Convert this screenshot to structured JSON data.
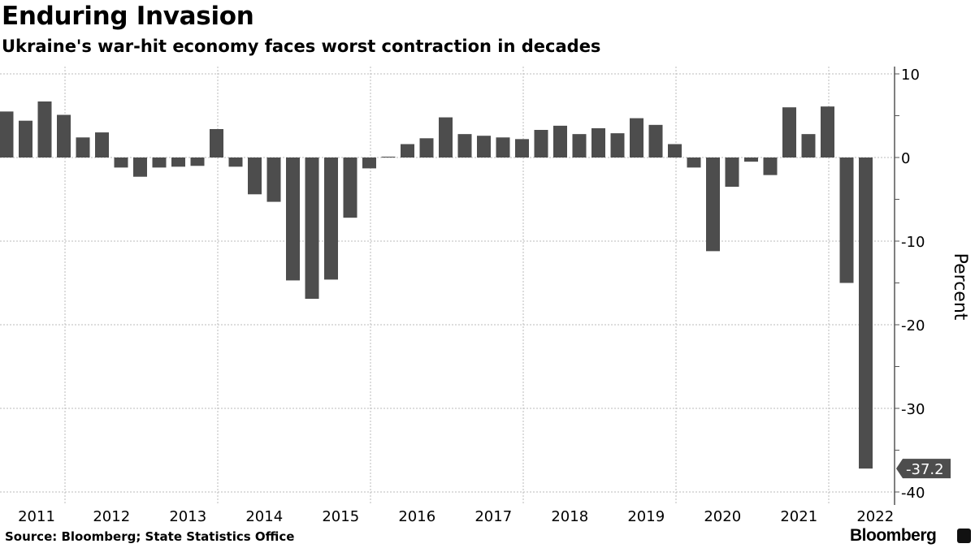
{
  "chart_data": {
    "type": "bar",
    "title": "Enduring Invasion",
    "subtitle": "Ukraine's war-hit economy faces worst contraction in decades",
    "ylabel": "Percent",
    "xlabel": "",
    "ylim": [
      -40,
      10
    ],
    "yticks": [
      10,
      0,
      -10,
      -20,
      -30,
      -40
    ],
    "grid": true,
    "bar_color": "#4d4d4d",
    "year_labels": [
      "2011",
      "2012",
      "2013",
      "2014",
      "2015",
      "2016",
      "2017",
      "2018",
      "2019",
      "2020",
      "2021",
      "2022"
    ],
    "categories": [
      "2011 Q1",
      "2011 Q2",
      "2011 Q3",
      "2011 Q4",
      "2012 Q1",
      "2012 Q2",
      "2012 Q3",
      "2012 Q4",
      "2013 Q1",
      "2013 Q2",
      "2013 Q3",
      "2013 Q4",
      "2014 Q1",
      "2014 Q2",
      "2014 Q3",
      "2014 Q4",
      "2015 Q1",
      "2015 Q2",
      "2015 Q3",
      "2015 Q4",
      "2016 Q1",
      "2016 Q2",
      "2016 Q3",
      "2016 Q4",
      "2017 Q1",
      "2017 Q2",
      "2017 Q3",
      "2017 Q4",
      "2018 Q1",
      "2018 Q2",
      "2018 Q3",
      "2018 Q4",
      "2019 Q1",
      "2019 Q2",
      "2019 Q3",
      "2019 Q4",
      "2020 Q1",
      "2020 Q2",
      "2020 Q3",
      "2020 Q4",
      "2021 Q1",
      "2021 Q2",
      "2021 Q3",
      "2021 Q4",
      "2022 Q1",
      "2022 Q2"
    ],
    "values": [
      5.5,
      4.4,
      6.7,
      5.1,
      2.4,
      3.0,
      -1.2,
      -2.3,
      -1.2,
      -1.1,
      -1.0,
      3.4,
      -1.1,
      -4.4,
      -5.3,
      -14.7,
      -16.9,
      -14.6,
      -7.2,
      -1.3,
      0.1,
      1.6,
      2.3,
      4.8,
      2.8,
      2.6,
      2.4,
      2.2,
      3.3,
      3.8,
      2.8,
      3.5,
      2.9,
      4.7,
      3.9,
      1.6,
      -1.2,
      -11.2,
      -3.5,
      -0.5,
      -2.1,
      6.0,
      2.8,
      6.1,
      -15.0,
      -37.2
    ],
    "annotation": {
      "label": "-37.2",
      "value": -37.2
    }
  },
  "footer": {
    "source": "Source: Bloomberg; State Statistics Office",
    "brand": "Bloomberg"
  }
}
